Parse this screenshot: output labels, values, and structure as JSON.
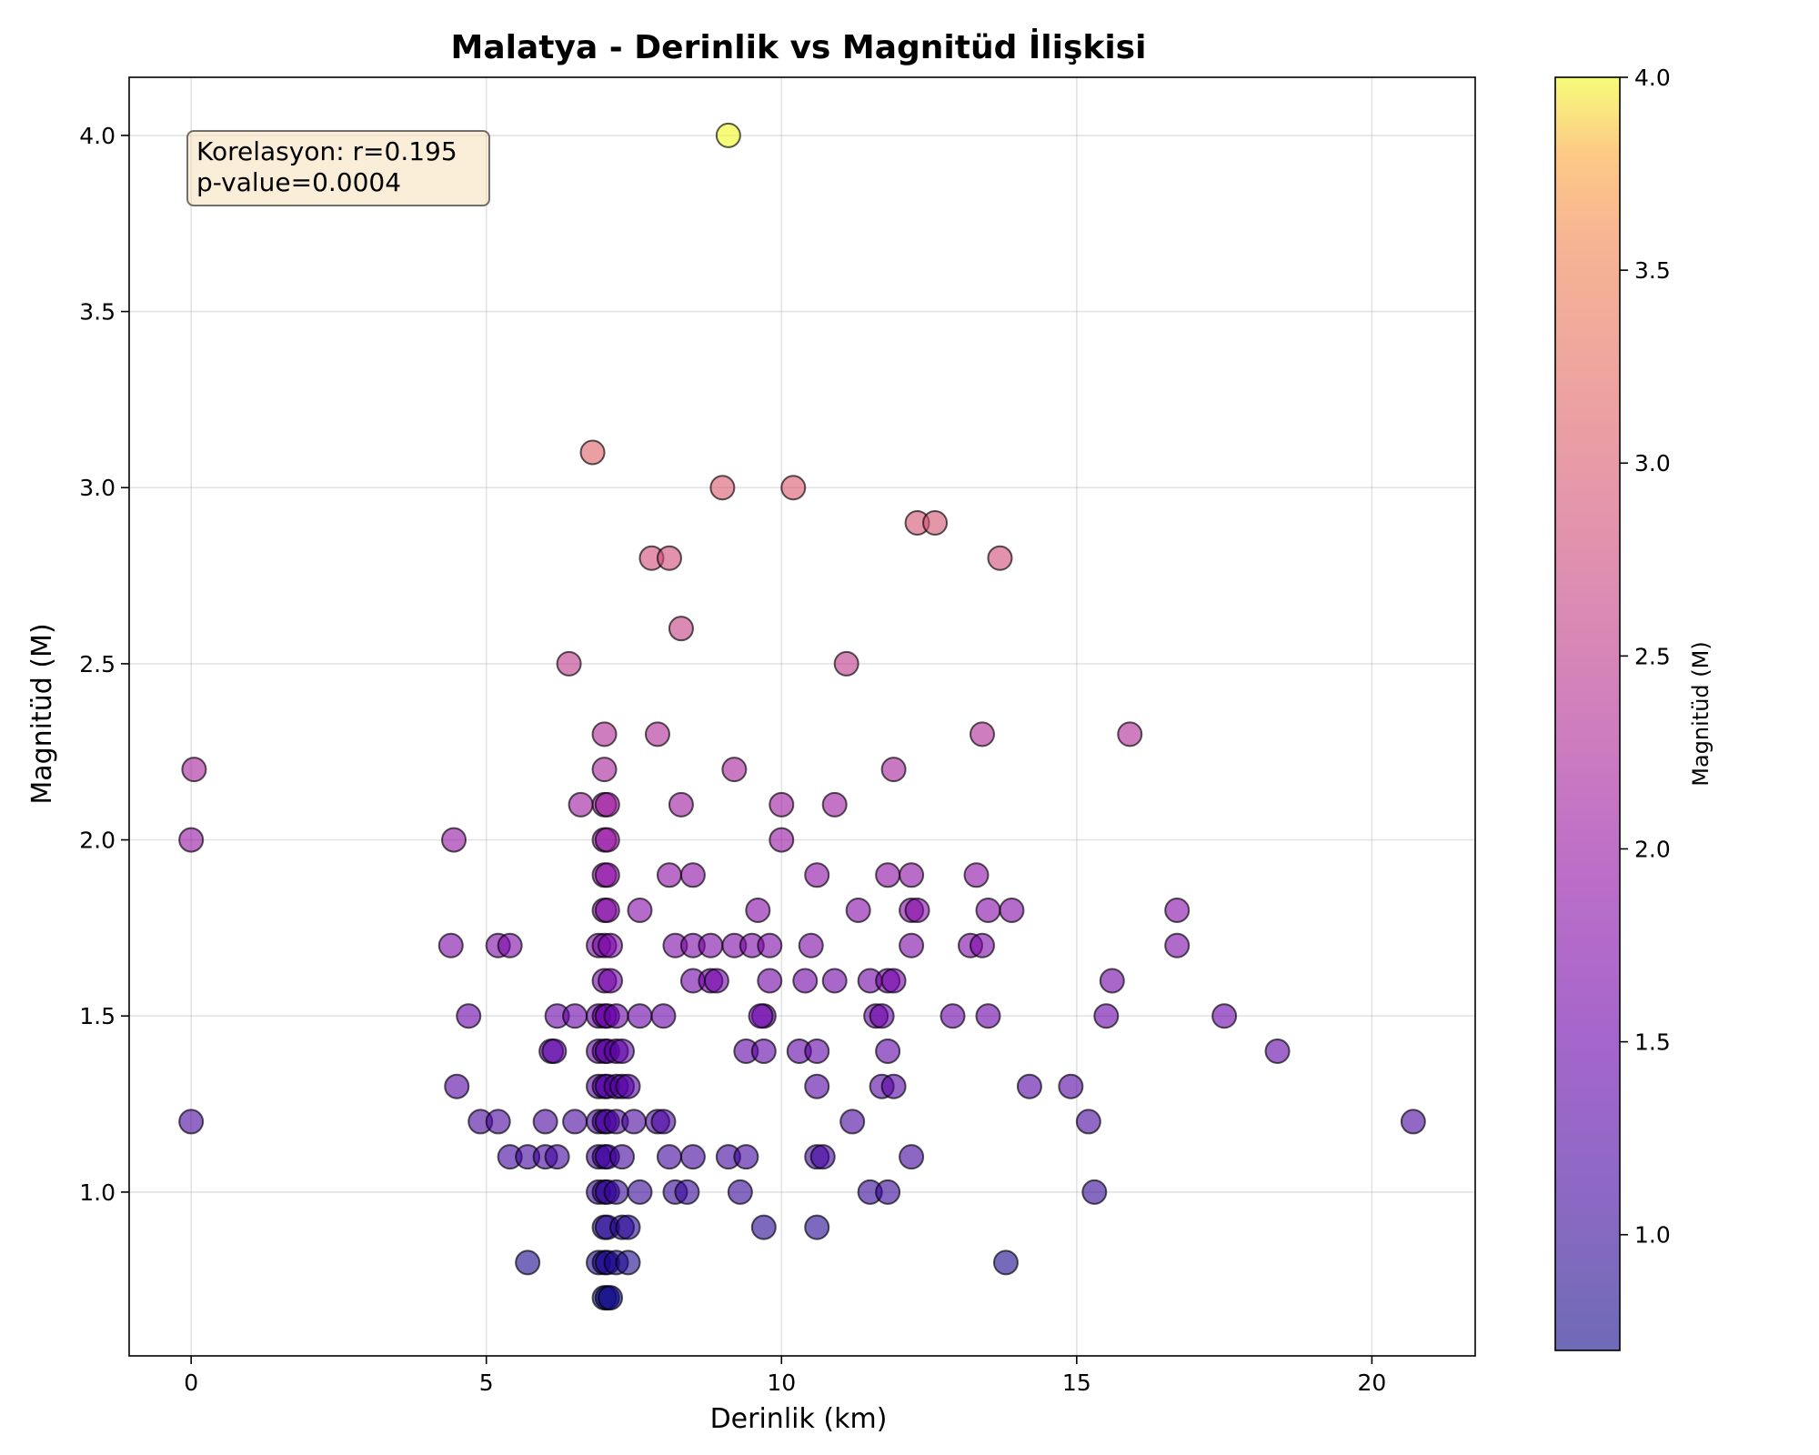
{
  "chart_data": {
    "type": "scatter",
    "title": "Malatya - Derinlik vs Magnitüd İlişkisi",
    "xlabel": "Derinlik (km)",
    "ylabel": "Magnitüd (M)",
    "xlim": [
      -1.05,
      21.75
    ],
    "ylim": [
      0.535,
      4.165
    ],
    "xticks": [
      0,
      5,
      10,
      15,
      20
    ],
    "xtick_labels": [
      "0",
      "5",
      "10",
      "15",
      "20"
    ],
    "yticks": [
      1.0,
      1.5,
      2.0,
      2.5,
      3.0,
      3.5,
      4.0
    ],
    "ytick_labels": [
      "1.0",
      "1.5",
      "2.0",
      "2.5",
      "3.0",
      "3.5",
      "4.0"
    ],
    "grid": true,
    "annotation": {
      "lines": [
        "Korelasyon: r=0.195",
        "p-value=0.0004"
      ],
      "placement": "top-left",
      "background": "#f5deb3"
    },
    "colorbar": {
      "label": "Magnitüd (M)",
      "colormap": "plasma",
      "range": [
        0.7,
        4.0
      ],
      "ticks": [
        1.0,
        1.5,
        2.0,
        2.5,
        3.0,
        3.5,
        4.0
      ],
      "tick_labels": [
        "1.0",
        "1.5",
        "2.0",
        "2.5",
        "3.0",
        "3.5",
        "4.0"
      ]
    },
    "marker_alpha": 0.6,
    "marker_edge": "#000000",
    "points": [
      {
        "x": 9.1,
        "y": 4.0
      },
      {
        "x": 6.8,
        "y": 3.1
      },
      {
        "x": 9.0,
        "y": 3.0
      },
      {
        "x": 10.2,
        "y": 3.0
      },
      {
        "x": 12.3,
        "y": 2.9
      },
      {
        "x": 12.6,
        "y": 2.9
      },
      {
        "x": 7.8,
        "y": 2.8
      },
      {
        "x": 8.1,
        "y": 2.8
      },
      {
        "x": 13.7,
        "y": 2.8
      },
      {
        "x": 8.3,
        "y": 2.6
      },
      {
        "x": 6.4,
        "y": 2.5
      },
      {
        "x": 11.1,
        "y": 2.5
      },
      {
        "x": 7.0,
        "y": 2.3
      },
      {
        "x": 7.9,
        "y": 2.3
      },
      {
        "x": 13.4,
        "y": 2.3
      },
      {
        "x": 15.9,
        "y": 2.3
      },
      {
        "x": 0.05,
        "y": 2.2
      },
      {
        "x": 7.0,
        "y": 2.2
      },
      {
        "x": 9.2,
        "y": 2.2
      },
      {
        "x": 11.9,
        "y": 2.2
      },
      {
        "x": 6.6,
        "y": 2.1
      },
      {
        "x": 7.0,
        "y": 2.1
      },
      {
        "x": 7.05,
        "y": 2.1
      },
      {
        "x": 8.3,
        "y": 2.1
      },
      {
        "x": 10.0,
        "y": 2.1
      },
      {
        "x": 10.9,
        "y": 2.1
      },
      {
        "x": 0.0,
        "y": 2.0
      },
      {
        "x": 4.45,
        "y": 2.0
      },
      {
        "x": 7.0,
        "y": 2.0
      },
      {
        "x": 7.05,
        "y": 2.0
      },
      {
        "x": 10.0,
        "y": 2.0
      },
      {
        "x": 7.0,
        "y": 1.9
      },
      {
        "x": 7.05,
        "y": 1.9
      },
      {
        "x": 8.1,
        "y": 1.9
      },
      {
        "x": 8.5,
        "y": 1.9
      },
      {
        "x": 10.6,
        "y": 1.9
      },
      {
        "x": 11.8,
        "y": 1.9
      },
      {
        "x": 12.2,
        "y": 1.9
      },
      {
        "x": 13.3,
        "y": 1.9
      },
      {
        "x": 7.0,
        "y": 1.8
      },
      {
        "x": 7.05,
        "y": 1.8
      },
      {
        "x": 7.6,
        "y": 1.8
      },
      {
        "x": 9.6,
        "y": 1.8
      },
      {
        "x": 11.3,
        "y": 1.8
      },
      {
        "x": 12.2,
        "y": 1.8
      },
      {
        "x": 12.3,
        "y": 1.8
      },
      {
        "x": 13.5,
        "y": 1.8
      },
      {
        "x": 13.9,
        "y": 1.8
      },
      {
        "x": 16.7,
        "y": 1.8
      },
      {
        "x": 4.4,
        "y": 1.7
      },
      {
        "x": 5.2,
        "y": 1.7
      },
      {
        "x": 5.4,
        "y": 1.7
      },
      {
        "x": 6.9,
        "y": 1.7
      },
      {
        "x": 7.0,
        "y": 1.7
      },
      {
        "x": 7.1,
        "y": 1.7
      },
      {
        "x": 8.2,
        "y": 1.7
      },
      {
        "x": 8.5,
        "y": 1.7
      },
      {
        "x": 8.8,
        "y": 1.7
      },
      {
        "x": 9.2,
        "y": 1.7
      },
      {
        "x": 9.5,
        "y": 1.7
      },
      {
        "x": 9.8,
        "y": 1.7
      },
      {
        "x": 10.5,
        "y": 1.7
      },
      {
        "x": 12.2,
        "y": 1.7
      },
      {
        "x": 13.2,
        "y": 1.7
      },
      {
        "x": 13.4,
        "y": 1.7
      },
      {
        "x": 16.7,
        "y": 1.7
      },
      {
        "x": 7.0,
        "y": 1.6
      },
      {
        "x": 7.1,
        "y": 1.6
      },
      {
        "x": 8.5,
        "y": 1.6
      },
      {
        "x": 8.8,
        "y": 1.6
      },
      {
        "x": 8.9,
        "y": 1.6
      },
      {
        "x": 9.8,
        "y": 1.6
      },
      {
        "x": 10.4,
        "y": 1.6
      },
      {
        "x": 10.9,
        "y": 1.6
      },
      {
        "x": 11.5,
        "y": 1.6
      },
      {
        "x": 11.8,
        "y": 1.6
      },
      {
        "x": 11.9,
        "y": 1.6
      },
      {
        "x": 15.6,
        "y": 1.6
      },
      {
        "x": 4.7,
        "y": 1.5
      },
      {
        "x": 6.2,
        "y": 1.5
      },
      {
        "x": 6.5,
        "y": 1.5
      },
      {
        "x": 6.9,
        "y": 1.5
      },
      {
        "x": 7.0,
        "y": 1.5
      },
      {
        "x": 7.05,
        "y": 1.5
      },
      {
        "x": 7.2,
        "y": 1.5
      },
      {
        "x": 7.6,
        "y": 1.5
      },
      {
        "x": 8.0,
        "y": 1.5
      },
      {
        "x": 9.7,
        "y": 1.5
      },
      {
        "x": 9.65,
        "y": 1.5
      },
      {
        "x": 11.6,
        "y": 1.5
      },
      {
        "x": 11.7,
        "y": 1.5
      },
      {
        "x": 12.9,
        "y": 1.5
      },
      {
        "x": 13.5,
        "y": 1.5
      },
      {
        "x": 15.5,
        "y": 1.5
      },
      {
        "x": 17.5,
        "y": 1.5
      },
      {
        "x": 6.1,
        "y": 1.4
      },
      {
        "x": 6.15,
        "y": 1.4
      },
      {
        "x": 6.9,
        "y": 1.4
      },
      {
        "x": 7.0,
        "y": 1.4
      },
      {
        "x": 7.05,
        "y": 1.4
      },
      {
        "x": 7.2,
        "y": 1.4
      },
      {
        "x": 7.3,
        "y": 1.4
      },
      {
        "x": 9.4,
        "y": 1.4
      },
      {
        "x": 9.7,
        "y": 1.4
      },
      {
        "x": 10.3,
        "y": 1.4
      },
      {
        "x": 10.6,
        "y": 1.4
      },
      {
        "x": 11.8,
        "y": 1.4
      },
      {
        "x": 18.4,
        "y": 1.4
      },
      {
        "x": 4.5,
        "y": 1.3
      },
      {
        "x": 6.9,
        "y": 1.3
      },
      {
        "x": 7.0,
        "y": 1.3
      },
      {
        "x": 7.05,
        "y": 1.3
      },
      {
        "x": 7.2,
        "y": 1.3
      },
      {
        "x": 7.3,
        "y": 1.3
      },
      {
        "x": 7.4,
        "y": 1.3
      },
      {
        "x": 10.6,
        "y": 1.3
      },
      {
        "x": 11.7,
        "y": 1.3
      },
      {
        "x": 11.9,
        "y": 1.3
      },
      {
        "x": 14.2,
        "y": 1.3
      },
      {
        "x": 14.9,
        "y": 1.3
      },
      {
        "x": 0.0,
        "y": 1.2
      },
      {
        "x": 4.9,
        "y": 1.2
      },
      {
        "x": 5.2,
        "y": 1.2
      },
      {
        "x": 6.0,
        "y": 1.2
      },
      {
        "x": 6.5,
        "y": 1.2
      },
      {
        "x": 6.9,
        "y": 1.2
      },
      {
        "x": 7.0,
        "y": 1.2
      },
      {
        "x": 7.05,
        "y": 1.2
      },
      {
        "x": 7.2,
        "y": 1.2
      },
      {
        "x": 7.5,
        "y": 1.2
      },
      {
        "x": 7.9,
        "y": 1.2
      },
      {
        "x": 8.0,
        "y": 1.2
      },
      {
        "x": 11.2,
        "y": 1.2
      },
      {
        "x": 15.2,
        "y": 1.2
      },
      {
        "x": 20.7,
        "y": 1.2
      },
      {
        "x": 5.4,
        "y": 1.1
      },
      {
        "x": 5.7,
        "y": 1.1
      },
      {
        "x": 6.0,
        "y": 1.1
      },
      {
        "x": 6.2,
        "y": 1.1
      },
      {
        "x": 6.9,
        "y": 1.1
      },
      {
        "x": 7.0,
        "y": 1.1
      },
      {
        "x": 7.05,
        "y": 1.1
      },
      {
        "x": 7.3,
        "y": 1.1
      },
      {
        "x": 8.1,
        "y": 1.1
      },
      {
        "x": 8.5,
        "y": 1.1
      },
      {
        "x": 9.1,
        "y": 1.1
      },
      {
        "x": 9.4,
        "y": 1.1
      },
      {
        "x": 10.6,
        "y": 1.1
      },
      {
        "x": 10.7,
        "y": 1.1
      },
      {
        "x": 12.2,
        "y": 1.1
      },
      {
        "x": 6.9,
        "y": 1.0
      },
      {
        "x": 7.0,
        "y": 1.0
      },
      {
        "x": 7.05,
        "y": 1.0
      },
      {
        "x": 7.2,
        "y": 1.0
      },
      {
        "x": 7.6,
        "y": 1.0
      },
      {
        "x": 8.2,
        "y": 1.0
      },
      {
        "x": 8.4,
        "y": 1.0
      },
      {
        "x": 9.3,
        "y": 1.0
      },
      {
        "x": 11.5,
        "y": 1.0
      },
      {
        "x": 11.8,
        "y": 1.0
      },
      {
        "x": 15.3,
        "y": 1.0
      },
      {
        "x": 7.0,
        "y": 0.9
      },
      {
        "x": 7.05,
        "y": 0.9
      },
      {
        "x": 7.3,
        "y": 0.9
      },
      {
        "x": 7.4,
        "y": 0.9
      },
      {
        "x": 9.7,
        "y": 0.9
      },
      {
        "x": 10.6,
        "y": 0.9
      },
      {
        "x": 5.7,
        "y": 0.8
      },
      {
        "x": 6.9,
        "y": 0.8
      },
      {
        "x": 7.0,
        "y": 0.8
      },
      {
        "x": 7.05,
        "y": 0.8
      },
      {
        "x": 7.2,
        "y": 0.8
      },
      {
        "x": 7.4,
        "y": 0.8
      },
      {
        "x": 13.8,
        "y": 0.8
      },
      {
        "x": 7.0,
        "y": 0.7
      },
      {
        "x": 7.05,
        "y": 0.7
      },
      {
        "x": 7.1,
        "y": 0.7
      }
    ]
  }
}
